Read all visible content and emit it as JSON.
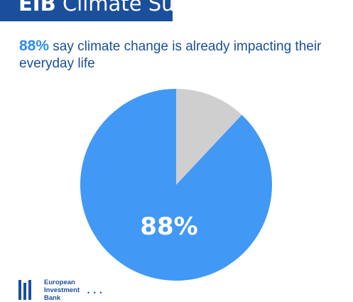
{
  "header": {
    "brand": "EIB",
    "title": "Climate Survey"
  },
  "headline": {
    "stat": "88%",
    "text": " say climate change is already impacting their everyday life"
  },
  "chart_data": {
    "type": "pie",
    "values": [
      88,
      12
    ],
    "data_labels": [
      "88%",
      ""
    ],
    "colors": [
      "#4298f5",
      "#cfcfcf"
    ],
    "start_angle_deg": 0,
    "direction": "counterclockwise"
  },
  "logo": {
    "text": "European\nInvestment\nBank"
  }
}
